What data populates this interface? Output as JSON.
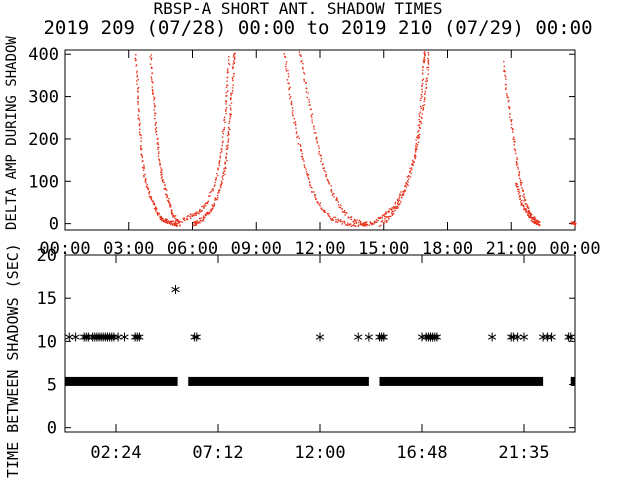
{
  "header": {
    "title": "RBSP-A SHORT ANT. SHADOW TIMES",
    "subtitle": "2019 209 (07/28) 00:00 to 2019 210 (07/29) 00:00"
  },
  "colors": {
    "background": "#ffffff",
    "axes": "#000000",
    "top_points": "#e8321e",
    "bottom_marks": "#000000"
  },
  "chart_data": [
    {
      "type": "scatter",
      "name": "top-panel",
      "ylabel": "DELTA AMP DURING SHADOW",
      "xlim": [
        0,
        24
      ],
      "ylim": [
        -15,
        410
      ],
      "x_ticks": [
        "00:00",
        "03:00",
        "06:00",
        "09:00",
        "12:00",
        "15:00",
        "18:00",
        "21:00",
        "00:00"
      ],
      "y_ticks": [
        "0",
        "100",
        "200",
        "300",
        "400"
      ],
      "grid": false,
      "color": "#e8321e",
      "series": [
        {
          "values": [
            [
              3.3,
              400
            ],
            [
              3.4,
              320
            ],
            [
              3.45,
              250
            ],
            [
              3.55,
              180
            ],
            [
              3.7,
              120
            ],
            [
              3.9,
              80
            ],
            [
              4.1,
              50
            ],
            [
              4.3,
              30
            ],
            [
              4.5,
              15
            ],
            [
              4.7,
              8
            ],
            [
              4.9,
              4
            ],
            [
              5.1,
              2
            ],
            [
              5.3,
              0
            ]
          ]
        },
        {
          "values": [
            [
              4.0,
              400
            ],
            [
              4.1,
              330
            ],
            [
              4.2,
              270
            ],
            [
              4.3,
              200
            ],
            [
              4.45,
              140
            ],
            [
              4.6,
              100
            ],
            [
              4.8,
              60
            ],
            [
              5.0,
              30
            ],
            [
              5.2,
              10
            ],
            [
              5.4,
              0
            ]
          ]
        },
        {
          "values": [
            [
              6.0,
              0
            ],
            [
              6.2,
              5
            ],
            [
              6.5,
              15
            ],
            [
              6.8,
              30
            ],
            [
              7.0,
              50
            ],
            [
              7.3,
              90
            ],
            [
              7.5,
              130
            ],
            [
              7.6,
              180
            ],
            [
              7.7,
              230
            ],
            [
              7.8,
              300
            ],
            [
              7.9,
              370
            ],
            [
              7.95,
              410
            ]
          ]
        },
        {
          "values": [
            [
              5.5,
              10
            ],
            [
              5.9,
              20
            ],
            [
              6.3,
              30
            ],
            [
              6.7,
              55
            ],
            [
              7.1,
              110
            ],
            [
              7.3,
              170
            ],
            [
              7.5,
              250
            ],
            [
              7.6,
              320
            ],
            [
              7.7,
              400
            ]
          ]
        },
        {
          "values": [
            [
              10.3,
              410
            ],
            [
              10.5,
              330
            ],
            [
              10.7,
              260
            ],
            [
              11.0,
              190
            ],
            [
              11.3,
              130
            ],
            [
              11.6,
              80
            ],
            [
              12.0,
              40
            ],
            [
              12.5,
              15
            ],
            [
              13.0,
              5
            ],
            [
              13.5,
              0
            ],
            [
              14.1,
              0
            ]
          ]
        },
        {
          "values": [
            [
              11.0,
              410
            ],
            [
              11.3,
              330
            ],
            [
              11.6,
              250
            ],
            [
              11.9,
              180
            ],
            [
              12.2,
              120
            ],
            [
              12.6,
              70
            ],
            [
              13.0,
              35
            ],
            [
              13.5,
              10
            ],
            [
              14.0,
              2
            ],
            [
              14.2,
              0
            ]
          ]
        },
        {
          "values": [
            [
              14.3,
              0
            ],
            [
              14.7,
              10
            ],
            [
              15.1,
              25
            ],
            [
              15.5,
              45
            ],
            [
              15.9,
              80
            ],
            [
              16.3,
              140
            ],
            [
              16.6,
              200
            ],
            [
              16.8,
              270
            ],
            [
              17.0,
              340
            ],
            [
              17.1,
              410
            ]
          ]
        },
        {
          "values": [
            [
              14.8,
              0
            ],
            [
              15.2,
              15
            ],
            [
              15.6,
              40
            ],
            [
              16.0,
              80
            ],
            [
              16.4,
              150
            ],
            [
              16.6,
              220
            ],
            [
              16.75,
              300
            ],
            [
              16.85,
              380
            ],
            [
              16.9,
              410
            ]
          ]
        },
        {
          "values": [
            [
              20.6,
              380
            ],
            [
              20.8,
              300
            ],
            [
              21.0,
              230
            ],
            [
              21.2,
              160
            ],
            [
              21.4,
              100
            ],
            [
              21.6,
              60
            ],
            [
              21.8,
              30
            ],
            [
              22.0,
              15
            ],
            [
              22.2,
              5
            ],
            [
              22.3,
              0
            ]
          ]
        },
        {
          "values": [
            [
              21.2,
              100
            ],
            [
              21.4,
              60
            ],
            [
              21.6,
              35
            ],
            [
              21.8,
              20
            ],
            [
              22.0,
              10
            ],
            [
              22.2,
              3
            ]
          ]
        },
        {
          "values": [
            [
              23.8,
              5
            ],
            [
              24.0,
              0
            ]
          ]
        }
      ]
    },
    {
      "type": "scatter",
      "name": "bottom-panel",
      "ylabel": "TIME BETWEEN SHADOWS (SEC)",
      "xlim": [
        0,
        24
      ],
      "ylim": [
        -0.5,
        20
      ],
      "x_ticks": [
        "02:24",
        "07:12",
        "12:00",
        "16:48",
        "21:35"
      ],
      "y_ticks": [
        "0",
        "5",
        "10",
        "15",
        "20"
      ],
      "grid": false,
      "marker": "asterisk",
      "series": [
        {
          "name": "",
          "values_x": [
            0.2,
            0.5,
            0.9,
            1.0,
            1.1,
            1.3,
            1.4,
            1.5,
            1.6,
            1.7,
            1.8,
            1.9,
            2.0,
            2.1,
            2.2,
            2.3,
            2.5,
            2.8,
            3.3,
            3.4,
            3.5,
            6.1,
            6.2,
            12.0,
            13.8,
            14.3,
            14.8,
            14.9,
            15.0,
            16.8,
            17.0,
            17.1,
            17.2,
            17.3,
            17.4,
            17.5,
            20.1,
            21.0,
            21.1,
            21.3,
            21.6,
            22.5,
            22.7,
            22.9,
            23.7,
            23.8
          ],
          "y": 10.5
        },
        {
          "name": "",
          "x": [
            5.2
          ],
          "y": 16
        }
      ],
      "bands": [
        {
          "from": 0,
          "to": 5.3,
          "y": 5.3
        },
        {
          "from": 5.8,
          "to": 14.3,
          "y": 5.3
        },
        {
          "from": 14.8,
          "to": 22.5,
          "y": 5.3
        },
        {
          "from": 23.8,
          "to": 24,
          "y": 5.3
        }
      ]
    }
  ]
}
